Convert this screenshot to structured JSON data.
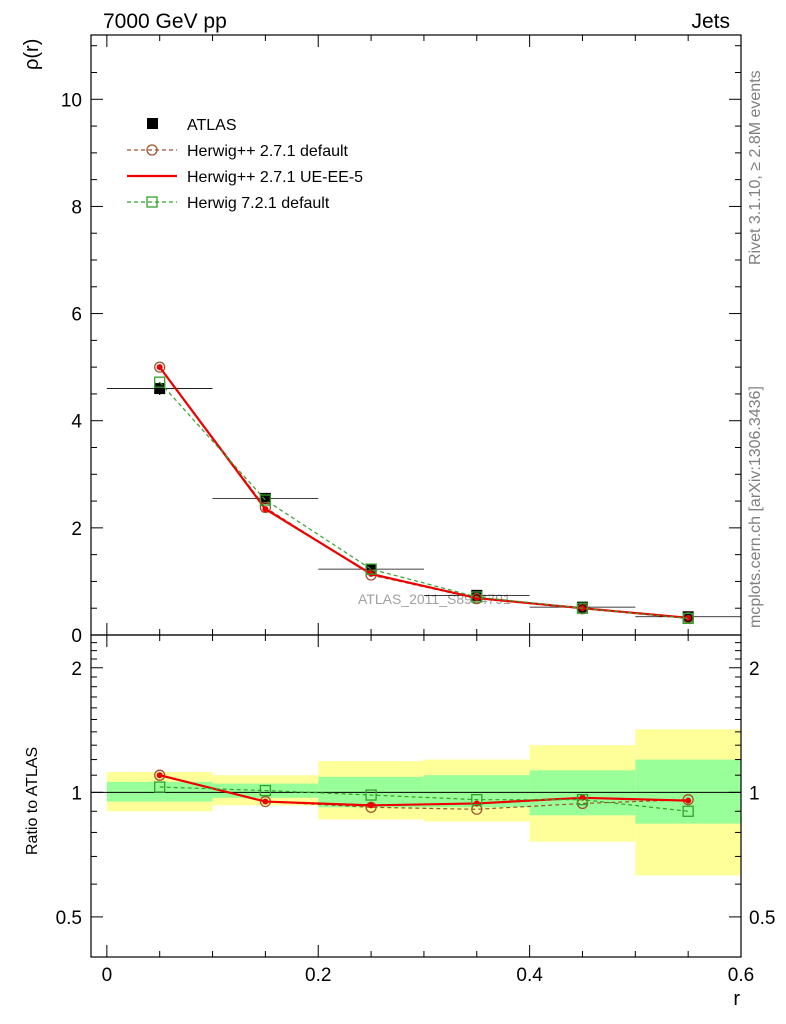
{
  "header": {
    "left": "7000 GeV pp",
    "right": "Jets"
  },
  "side_labels": {
    "rivet": "Rivet 3.1.10, ≥ 2.8M events",
    "mcplots": "mcplots.cern.ch [arXiv:1306.3436]"
  },
  "watermark": "ATLAS_2011_S8924791",
  "colors": {
    "atlas": "#000000",
    "herwigpp_default": "#a0522d",
    "herwigpp_ueee5": "#ee0000",
    "herwig7": "#33a02c",
    "band_inner": "#99ff99",
    "band_outer": "#ffff99"
  },
  "legend": [
    {
      "key": "atlas",
      "label": "ATLAS"
    },
    {
      "key": "hpp_default",
      "label": "Herwig++ 2.7.1 default"
    },
    {
      "key": "hpp_ueee5",
      "label": "Herwig++ 2.7.1 UE-EE-5"
    },
    {
      "key": "h7",
      "label": "Herwig 7.2.1 default"
    }
  ],
  "chart_data": [
    {
      "type": "line",
      "panel": "main",
      "title": "",
      "xlabel": "r",
      "ylabel": "ρ(r)",
      "xlim": [
        -0.015,
        0.6
      ],
      "ylim": [
        0,
        11.2
      ],
      "yticks": [
        0,
        2,
        4,
        6,
        8,
        10
      ],
      "ytick_labels": [
        "0",
        "2",
        "4",
        "6",
        "8",
        "10"
      ],
      "x": [
        0.05,
        0.15,
        0.25,
        0.35,
        0.45,
        0.55
      ],
      "xerr": [
        0.05,
        0.05,
        0.05,
        0.05,
        0.05,
        0.05
      ],
      "series": [
        {
          "name": "ATLAS",
          "key": "atlas",
          "values": [
            4.6,
            2.55,
            1.23,
            0.74,
            0.52,
            0.34
          ],
          "errors": [
            0.12,
            0.08,
            0.05,
            0.04,
            0.03,
            0.03
          ]
        },
        {
          "name": "Herwig++ 2.7.1 default",
          "key": "hpp_default",
          "values": [
            5.0,
            2.38,
            1.12,
            0.68,
            0.49,
            0.32
          ]
        },
        {
          "name": "Herwig++ 2.7.1 UE-EE-5",
          "key": "hpp_ueee5",
          "values": [
            5.0,
            2.35,
            1.14,
            0.69,
            0.5,
            0.32
          ]
        },
        {
          "name": "Herwig 7.2.1 default",
          "key": "h7",
          "values": [
            4.72,
            2.52,
            1.23,
            0.71,
            0.5,
            0.31
          ]
        }
      ]
    },
    {
      "type": "line",
      "panel": "ratio",
      "title": "",
      "xlabel": "r",
      "ylabel": "Ratio to ATLAS",
      "xlim": [
        -0.015,
        0.6
      ],
      "ylim": [
        0.4,
        2.4
      ],
      "yscale": "log",
      "yticks": [
        0.5,
        1,
        2
      ],
      "ytick_labels": [
        "0.5",
        "1",
        "2"
      ],
      "xticks": [
        0,
        0.2,
        0.4,
        0.6
      ],
      "xtick_labels": [
        "0",
        "0.2",
        "0.4",
        "0.6"
      ],
      "x": [
        0.05,
        0.15,
        0.25,
        0.35,
        0.45,
        0.55
      ],
      "bands": {
        "xlo": [
          0.0,
          0.1,
          0.2,
          0.3,
          0.4,
          0.5
        ],
        "xhi": [
          0.1,
          0.2,
          0.3,
          0.4,
          0.5,
          0.6
        ],
        "inner_lo": [
          0.95,
          0.97,
          0.92,
          0.92,
          0.88,
          0.84
        ],
        "inner_hi": [
          1.06,
          1.05,
          1.09,
          1.1,
          1.13,
          1.2
        ],
        "outer_lo": [
          0.9,
          0.93,
          0.86,
          0.85,
          0.76,
          0.63
        ],
        "outer_hi": [
          1.12,
          1.1,
          1.19,
          1.2,
          1.3,
          1.42
        ]
      },
      "series": [
        {
          "name": "Herwig++ 2.7.1 default",
          "key": "hpp_default",
          "values": [
            1.1,
            0.95,
            0.92,
            0.91,
            0.94,
            0.96
          ]
        },
        {
          "name": "Herwig++ 2.7.1 UE-EE-5",
          "key": "hpp_ueee5",
          "values": [
            1.1,
            0.95,
            0.93,
            0.94,
            0.97,
            0.955
          ]
        },
        {
          "name": "Herwig 7.2.1 default",
          "key": "h7",
          "values": [
            1.03,
            1.01,
            0.985,
            0.96,
            0.96,
            0.9
          ]
        }
      ]
    }
  ]
}
